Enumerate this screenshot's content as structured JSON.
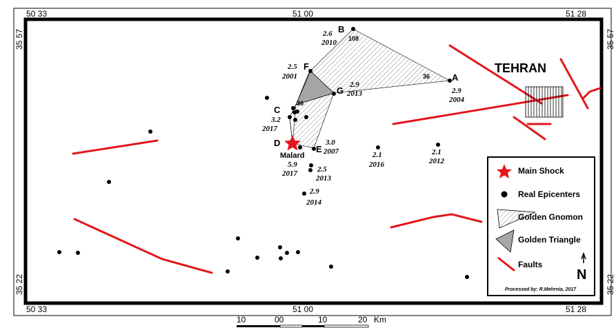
{
  "coords": {
    "top_left": "50 33",
    "top_mid": "51 00",
    "top_right": "51 28",
    "bottom_left": "50 33",
    "bottom_mid": "51 00",
    "bottom_right": "51 28",
    "left_top": "35 57",
    "left_bottom": "35 22",
    "right_top": "35 57",
    "right_bottom": "35 22"
  },
  "points": {
    "A": "A",
    "B": "B",
    "D": "D",
    "E": "E",
    "F": "F",
    "G": "G",
    "C": "C"
  },
  "annotations": {
    "b_mag": "2.6",
    "b_year": "2010",
    "b_angle": "108",
    "a_angle": "36",
    "a_mag": "2.9",
    "a_year": "2004",
    "f_mag": "2.5",
    "f_year": "2001",
    "g_mag": "2.9",
    "g_year": "2013",
    "c_angle": "36",
    "c_mag": "3.2",
    "c_year": "2017",
    "e_mag": "3.0",
    "e_year": "2007",
    "malard": "Malard",
    "d_mag": "5.9",
    "d_year": "2017",
    "p1_mag": "2.5",
    "p1_year": "2013",
    "p2_mag": "2.9",
    "p2_year": "2014",
    "p3_mag": "2.1",
    "p3_year": "2016",
    "p4_mag": "2.1",
    "p4_year": "2012"
  },
  "city": "TEHRAN",
  "legend": {
    "main_shock": "Main Shock",
    "real_epicenters": "Real Epicenters",
    "golden_gnomon": "Golden Gnomon",
    "golden_triangle": "Golden Triangle",
    "faults": "Faults",
    "north": "N",
    "credit": "Processed by: R.Mehrnia, 2017"
  },
  "scale_bar": {
    "labels": [
      "10",
      "00",
      "10",
      "20"
    ],
    "unit": "Km"
  },
  "colors": {
    "fault": "#e3161b",
    "star": "#e3161b",
    "triangle_fill": "#a6a6a6",
    "frame": "#000000"
  }
}
